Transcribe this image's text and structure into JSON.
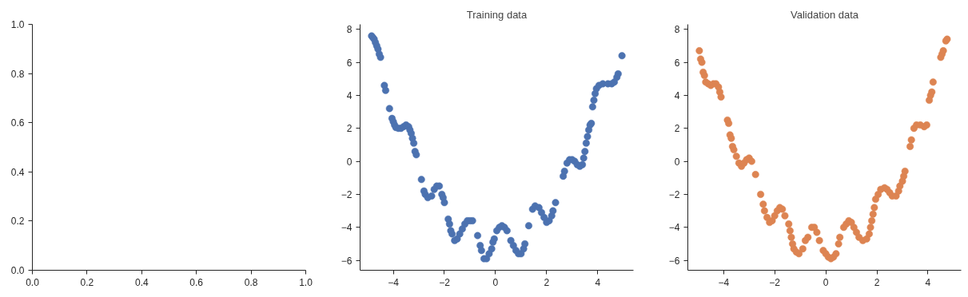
{
  "chart_data": [
    {
      "xlim": [
        0,
        1
      ],
      "ylim": [
        0,
        1
      ],
      "xticks": [
        {
          "value": 0,
          "label": "0.0"
        },
        {
          "value": 0.2,
          "label": "0.2"
        },
        {
          "value": 0.4,
          "label": "0.4"
        },
        {
          "value": 0.6,
          "label": "0.6"
        },
        {
          "value": 0.8,
          "label": "0.8"
        },
        {
          "value": 1,
          "label": "1.0"
        }
      ],
      "yticks": [
        {
          "value": 0,
          "label": "0.0"
        },
        {
          "value": 0.2,
          "label": "0.2"
        },
        {
          "value": 0.4,
          "label": "0.4"
        },
        {
          "value": 0.6,
          "label": "0.6"
        },
        {
          "value": 0.8,
          "label": "0.8"
        },
        {
          "value": 1,
          "label": "1.0"
        }
      ],
      "type": "scatter"
    },
    {
      "type": "scatter",
      "title": "Training data",
      "xlim": [
        -5.3,
        5.4
      ],
      "ylim": [
        -6.6,
        8.3
      ],
      "xticks": [
        -4,
        -2,
        0,
        2,
        4
      ],
      "yticks": [
        -6,
        -4,
        -2,
        0,
        2,
        4,
        6,
        8
      ],
      "marker": "circle",
      "series": [
        {
          "color": "#4c72b0",
          "x": [
            -4.85,
            -4.8,
            -4.75,
            -4.7,
            -4.65,
            -4.6,
            -4.55,
            -4.5,
            -4.35,
            -4.3,
            -4.15,
            -4.05,
            -4.0,
            -3.95,
            -3.9,
            -3.8,
            -3.7,
            -3.6,
            -3.5,
            -3.4,
            -3.35,
            -3.3,
            -3.25,
            -3.2,
            -3.15,
            -3.1,
            -2.9,
            -2.8,
            -2.75,
            -2.65,
            -2.5,
            -2.4,
            -2.3,
            -2.2,
            -2.1,
            -2.05,
            -2.0,
            -1.85,
            -1.8,
            -1.75,
            -1.7,
            -1.6,
            -1.5,
            -1.4,
            -1.3,
            -1.2,
            -1.1,
            -1.0,
            -0.9,
            -0.7,
            -0.6,
            -0.55,
            -0.45,
            -0.35,
            -0.25,
            -0.15,
            -0.1,
            -0.05,
            0.05,
            0.15,
            0.25,
            0.35,
            0.45,
            0.6,
            0.7,
            0.8,
            0.9,
            1.0,
            1.1,
            1.15,
            1.3,
            1.45,
            1.55,
            1.7,
            1.8,
            1.9,
            2.0,
            2.1,
            2.2,
            2.25,
            2.35,
            2.65,
            2.7,
            2.8,
            2.9,
            3.0,
            3.1,
            3.2,
            3.3,
            3.4,
            3.45,
            3.5,
            3.55,
            3.6,
            3.65,
            3.7,
            3.75,
            3.8,
            3.85,
            3.9,
            3.95,
            4.05,
            4.2,
            4.4,
            4.55,
            4.65,
            4.75,
            4.8,
            4.95
          ],
          "values": [
            7.6,
            7.5,
            7.4,
            7.2,
            7.0,
            6.8,
            6.5,
            6.3,
            4.6,
            4.3,
            3.2,
            2.6,
            2.4,
            2.2,
            2.05,
            2.0,
            2.0,
            2.1,
            2.2,
            2.1,
            1.9,
            1.7,
            1.4,
            1.1,
            0.6,
            0.4,
            -1.1,
            -1.8,
            -2.0,
            -2.2,
            -2.1,
            -1.7,
            -1.5,
            -1.5,
            -2.0,
            -2.2,
            -2.5,
            -3.5,
            -3.8,
            -4.2,
            -4.4,
            -4.8,
            -4.7,
            -4.4,
            -4.1,
            -3.8,
            -3.6,
            -3.6,
            -3.6,
            -4.5,
            -5.1,
            -5.4,
            -5.9,
            -5.9,
            -5.6,
            -5.3,
            -4.9,
            -4.7,
            -4.2,
            -4.0,
            -3.9,
            -4.0,
            -4.2,
            -4.8,
            -5.1,
            -5.4,
            -5.6,
            -5.6,
            -5.3,
            -5.0,
            -3.9,
            -2.9,
            -2.7,
            -2.8,
            -3.1,
            -3.4,
            -3.7,
            -3.6,
            -3.3,
            -3.0,
            -2.5,
            -0.9,
            -0.6,
            -0.1,
            0.1,
            0.1,
            0.0,
            -0.2,
            -0.3,
            -0.2,
            0.2,
            0.6,
            1.1,
            1.5,
            1.9,
            2.2,
            2.3,
            3.3,
            3.7,
            4.1,
            4.4,
            4.6,
            4.7,
            4.7,
            4.7,
            4.8,
            5.1,
            5.3,
            6.4
          ]
        }
      ]
    },
    {
      "type": "scatter",
      "title": "Validation data",
      "xlim": [
        -5.4,
        5.3
      ],
      "ylim": [
        -6.6,
        8.3
      ],
      "xticks": [
        -4,
        -2,
        0,
        2,
        4
      ],
      "yticks": [
        -6,
        -4,
        -2,
        0,
        2,
        4,
        6,
        8
      ],
      "marker": "circle",
      "series": [
        {
          "color": "#dd8452",
          "x": [
            -4.95,
            -4.9,
            -4.85,
            -4.8,
            -4.75,
            -4.7,
            -4.6,
            -4.5,
            -4.4,
            -4.3,
            -4.2,
            -4.15,
            -4.1,
            -3.85,
            -3.8,
            -3.75,
            -3.7,
            -3.65,
            -3.6,
            -3.5,
            -3.4,
            -3.3,
            -3.2,
            -3.1,
            -3.0,
            -2.9,
            -2.75,
            -2.55,
            -2.45,
            -2.4,
            -2.3,
            -2.2,
            -2.1,
            -2.0,
            -1.9,
            -1.8,
            -1.7,
            -1.6,
            -1.45,
            -1.4,
            -1.35,
            -1.3,
            -1.25,
            -1.15,
            -1.05,
            -0.9,
            -0.8,
            -0.7,
            -0.55,
            -0.45,
            -0.35,
            -0.25,
            -0.1,
            0.0,
            0.1,
            0.2,
            0.3,
            0.4,
            0.5,
            0.55,
            0.7,
            0.8,
            0.9,
            1.0,
            1.1,
            1.2,
            1.3,
            1.45,
            1.6,
            1.7,
            1.75,
            1.8,
            1.85,
            1.9,
            1.95,
            2.05,
            2.15,
            2.3,
            2.4,
            2.5,
            2.6,
            2.75,
            2.85,
            2.9,
            3.0,
            3.05,
            3.1,
            3.3,
            3.35,
            3.45,
            3.55,
            3.7,
            3.85,
            3.95,
            4.05,
            4.1,
            4.15,
            4.2,
            4.5,
            4.55,
            4.6,
            4.7,
            4.75
          ],
          "values": [
            6.7,
            6.2,
            6.0,
            5.4,
            5.2,
            4.8,
            4.7,
            4.6,
            4.7,
            4.7,
            4.5,
            4.2,
            3.9,
            2.5,
            2.3,
            1.6,
            1.4,
            0.9,
            0.7,
            0.3,
            -0.1,
            -0.3,
            -0.1,
            0.1,
            0.2,
            0.0,
            -0.8,
            -2.0,
            -2.6,
            -3.0,
            -3.4,
            -3.7,
            -3.6,
            -3.3,
            -3.0,
            -2.8,
            -2.9,
            -3.3,
            -3.8,
            -4.2,
            -4.6,
            -5.0,
            -5.3,
            -5.5,
            -5.6,
            -5.3,
            -4.8,
            -4.6,
            -4.0,
            -4.0,
            -4.3,
            -4.8,
            -5.4,
            -5.6,
            -5.8,
            -5.9,
            -5.8,
            -5.6,
            -5.0,
            -4.6,
            -4.0,
            -3.8,
            -3.6,
            -3.7,
            -4.0,
            -4.3,
            -4.6,
            -4.8,
            -4.7,
            -4.4,
            -4.0,
            -3.6,
            -3.2,
            -2.8,
            -2.3,
            -2.0,
            -1.7,
            -1.6,
            -1.7,
            -1.9,
            -2.1,
            -2.1,
            -1.8,
            -1.5,
            -1.2,
            -0.9,
            -0.6,
            0.9,
            1.3,
            2.0,
            2.2,
            2.2,
            2.1,
            2.2,
            3.7,
            4.0,
            4.2,
            4.8,
            6.3,
            6.5,
            6.7,
            7.3,
            7.4
          ]
        }
      ]
    }
  ]
}
